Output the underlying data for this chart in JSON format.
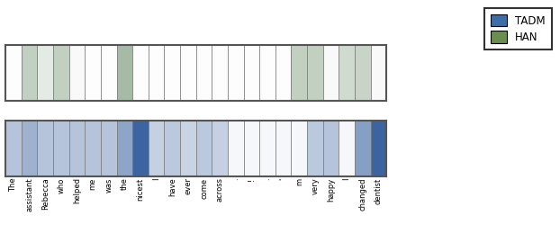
{
  "words": [
    "The",
    "assistant",
    "Rebecca",
    "who",
    "helped",
    "me",
    "was",
    "the",
    "nicest",
    "I",
    "have",
    "ever",
    "come",
    "across",
    ".",
    "!",
    ".",
    "'",
    "m",
    "very",
    "happy",
    "I",
    "changed",
    "dentist"
  ],
  "han_weights_visual": [
    0.02,
    0.42,
    0.18,
    0.42,
    0.05,
    0.02,
    0.02,
    0.6,
    0.02,
    0.02,
    0.02,
    0.02,
    0.02,
    0.02,
    0.02,
    0.02,
    0.02,
    0.02,
    0.42,
    0.42,
    0.05,
    0.32,
    0.38,
    0.05
  ],
  "tadm_weights_visual": [
    0.38,
    0.5,
    0.38,
    0.38,
    0.38,
    0.38,
    0.38,
    0.58,
    1.0,
    0.3,
    0.35,
    0.28,
    0.35,
    0.3,
    0.05,
    0.05,
    0.05,
    0.05,
    0.05,
    0.35,
    0.38,
    0.05,
    0.62,
    1.0
  ],
  "han_base_color": [
    107,
    142,
    107
  ],
  "tadm_base_color": [
    60,
    100,
    160
  ],
  "legend_tadm_color": "#3d6eaa",
  "legend_han_color": "#6b8e4e",
  "bar_edge_color": "#777777",
  "spine_color": "#555555"
}
